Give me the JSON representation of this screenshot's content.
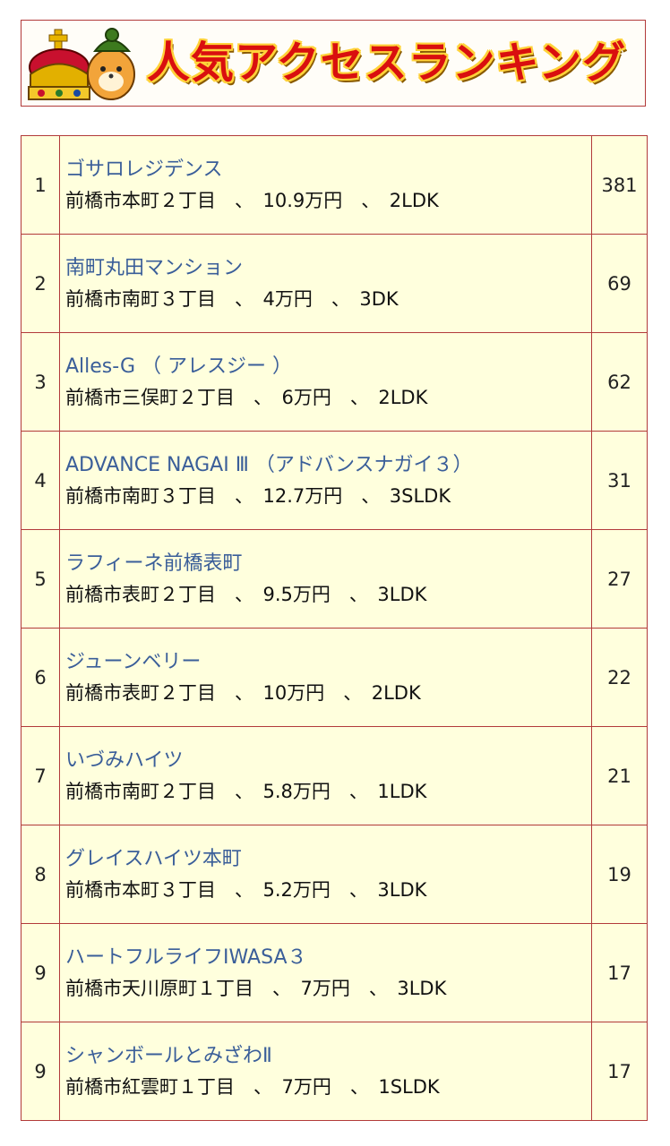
{
  "banner": {
    "title": "人気アクセスランキング"
  },
  "ranking": [
    {
      "rank": "1",
      "name": "ゴサロレジデンス",
      "detail": "前橋市本町２丁目　、　10.9万円　、　2LDK",
      "count": "381"
    },
    {
      "rank": "2",
      "name": "南町丸田マンション",
      "detail": "前橋市南町３丁目　、　4万円　、　3DK",
      "count": "69"
    },
    {
      "rank": "3",
      "name": "Alles-G （ アレスジー ）",
      "detail": "前橋市三俣町２丁目　、　6万円　、　2LDK",
      "count": "62"
    },
    {
      "rank": "4",
      "name": "ADVANCE NAGAI Ⅲ （アドバンスナガイ３）",
      "detail": "前橋市南町３丁目　、　12.7万円　、　3SLDK",
      "count": "31"
    },
    {
      "rank": "5",
      "name": "ラフィーネ前橋表町",
      "detail": "前橋市表町２丁目　、　9.5万円　、　3LDK",
      "count": "27"
    },
    {
      "rank": "6",
      "name": "ジューンベリー",
      "detail": "前橋市表町２丁目　、　10万円　、　2LDK",
      "count": "22"
    },
    {
      "rank": "7",
      "name": "いづみハイツ",
      "detail": "前橋市南町２丁目　、　5.8万円　、　1LDK",
      "count": "21"
    },
    {
      "rank": "8",
      "name": "グレイスハイツ本町",
      "detail": "前橋市本町３丁目　、　5.2万円　、　3LDK",
      "count": "19"
    },
    {
      "rank": "9",
      "name": "ハートフルライフIWASA３",
      "detail": "前橋市天川原町１丁目　、　7万円　、　3LDK",
      "count": "17"
    },
    {
      "rank": "9",
      "name": "シャンボールとみざわⅡ",
      "detail": "前橋市紅雲町１丁目　、　7万円　、　1SLDK",
      "count": "17"
    }
  ],
  "colors": {
    "border": "#b23a3a",
    "row_bg": "#ffffdd",
    "link": "#3a5e99",
    "title_red": "#d90f0f",
    "title_outline": "#ffd23a"
  }
}
